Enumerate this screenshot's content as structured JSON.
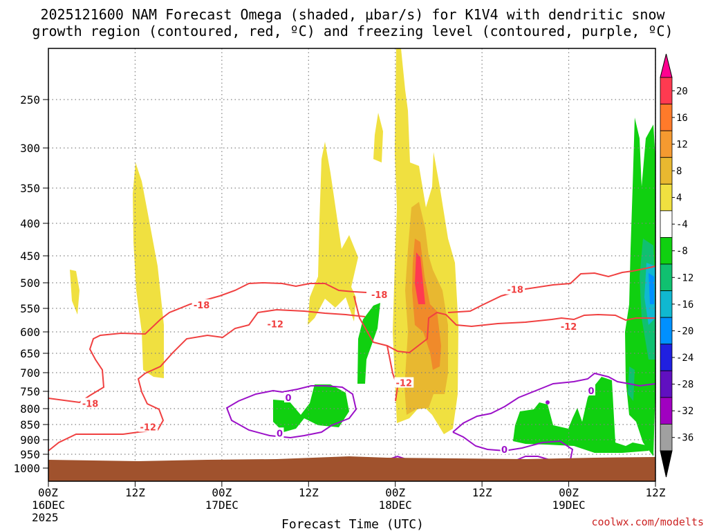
{
  "chart_data": {
    "type": "heatmap",
    "title_line1": "2025121600 NAM Forecast Omega (shaded, μbar/s) for K1V4 with dendritic snow",
    "title_line2": "growth region (contoured, red, ºC) and freezing level (contoured, purple, ºC)",
    "xlabel": "Forecast Time (UTC)",
    "ylabel": "",
    "x_ticks": [
      {
        "top": "00Z",
        "mid": "16DEC",
        "bot": "2025"
      },
      {
        "top": "12Z",
        "mid": "",
        "bot": ""
      },
      {
        "top": "00Z",
        "mid": "17DEC",
        "bot": ""
      },
      {
        "top": "12Z",
        "mid": "",
        "bot": ""
      },
      {
        "top": "00Z",
        "mid": "18DEC",
        "bot": ""
      },
      {
        "top": "12Z",
        "mid": "",
        "bot": ""
      },
      {
        "top": "00Z",
        "mid": "19DEC",
        "bot": ""
      },
      {
        "top": "12Z",
        "mid": "",
        "bot": ""
      }
    ],
    "x_hours": [
      0,
      12,
      24,
      36,
      48,
      60,
      72,
      84
    ],
    "xlim": [
      0,
      84
    ],
    "y_ticks": [
      "250",
      "300",
      "350",
      "400",
      "450",
      "500",
      "550",
      "600",
      "650",
      "700",
      "750",
      "800",
      "850",
      "900",
      "950",
      "1000"
    ],
    "y_values": [
      250,
      300,
      350,
      400,
      450,
      500,
      550,
      600,
      650,
      700,
      750,
      800,
      850,
      900,
      950,
      1000
    ],
    "ylim": [
      200,
      1050
    ],
    "grid": true,
    "colorbar_labels": [
      "20",
      "16",
      "12",
      "8",
      "4",
      "-4",
      "-8",
      "-12",
      "-16",
      "-20",
      "-24",
      "-28",
      "-32",
      "-36"
    ],
    "colorbar_colors": [
      "#ff3a50",
      "#ff7a2a",
      "#f59a30",
      "#e8b830",
      "#f0e040",
      "#ffffff",
      "#10d010",
      "#10c070",
      "#10b8d0",
      "#0090ff",
      "#2020e0",
      "#6010c0",
      "#a000c0",
      "#a0a0a0"
    ],
    "colorbar_top_color": "#ff0090",
    "colorbar_bottom_color": "#000000",
    "colors": {
      "ground": "#a0522d",
      "temp_contour": "#f04040",
      "freezing_contour": "#9b10c8",
      "grid": "#808080"
    },
    "contour_labels": [
      {
        "text": "-18",
        "x": 5.8,
        "y": 785,
        "type": "temp"
      },
      {
        "text": "-18",
        "x": 21.2,
        "y": 543,
        "type": "temp"
      },
      {
        "text": "-18",
        "x": 45.8,
        "y": 523,
        "type": "temp"
      },
      {
        "text": "-18",
        "x": 64.6,
        "y": 513,
        "type": "temp"
      },
      {
        "text": "-12",
        "x": 31.4,
        "y": 583,
        "type": "temp"
      },
      {
        "text": "-12",
        "x": 13.8,
        "y": 858,
        "type": "temp"
      },
      {
        "text": "-12",
        "x": 49.2,
        "y": 727,
        "type": "temp"
      },
      {
        "text": "-12",
        "x": 72.0,
        "y": 588,
        "type": "temp"
      },
      {
        "text": "0",
        "x": 33.2,
        "y": 768,
        "type": "frz"
      },
      {
        "text": "0",
        "x": 32.0,
        "y": 878,
        "type": "frz"
      },
      {
        "text": "0",
        "x": 63.1,
        "y": 933,
        "type": "frz"
      },
      {
        "text": "0",
        "x": 75.1,
        "y": 748,
        "type": "frz"
      }
    ],
    "watermark": "coolwx.com/modelts"
  }
}
